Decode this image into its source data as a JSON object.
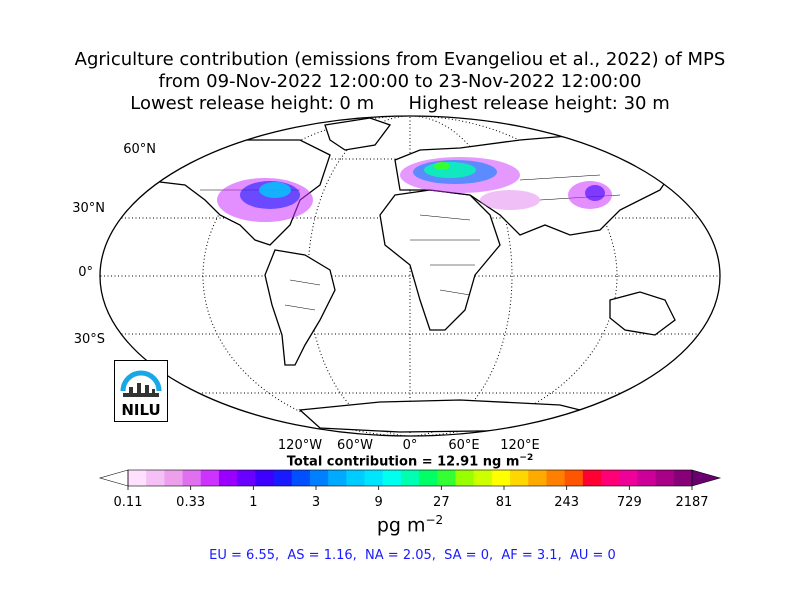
{
  "title": {
    "line1": "Agriculture contribution (emissions from Evangeliou et al., 2022) of MPS",
    "line2": "from 09-Nov-2022 12:00:00 to 23-Nov-2022 12:00:00",
    "line3": "Lowest release height: 0 m      Highest release height: 30 m"
  },
  "map": {
    "projection": "Robinson",
    "lat_labels": [
      "60°N",
      "30°N",
      "0°",
      "30°S"
    ],
    "lon_labels": [
      "120°W",
      "60°W",
      "0°",
      "60°E",
      "120°E"
    ],
    "gridlines": "dotted",
    "concentration_regions": [
      {
        "region": "North America",
        "level": "high"
      },
      {
        "region": "Europe",
        "level": "high"
      },
      {
        "region": "Asia",
        "level": "moderate"
      }
    ]
  },
  "total": {
    "label": "Total contribution = 12.91 ng m",
    "exponent": "−2"
  },
  "colorbar": {
    "tick_labels": [
      "0.11",
      "0.33",
      "1",
      "3",
      "9",
      "27",
      "81",
      "243",
      "729",
      "2187"
    ],
    "colors": [
      "#ffffff",
      "#ffe0ff",
      "#f5c0f5",
      "#eca0ec",
      "#e070f0",
      "#cc33ff",
      "#9900ff",
      "#6a00ff",
      "#3d00ff",
      "#1a1aff",
      "#0050ff",
      "#0080ff",
      "#00aaff",
      "#00ccff",
      "#00e5ff",
      "#00ffee",
      "#00ffb0",
      "#00ff66",
      "#33ff33",
      "#99ff00",
      "#ccff00",
      "#ffff00",
      "#ffd700",
      "#ffaa00",
      "#ff8000",
      "#ff5500",
      "#ff0033",
      "#ff0077",
      "#ee0099",
      "#cc0099",
      "#aa0088",
      "#880077",
      "#6a0070"
    ],
    "unit": "pg m",
    "unit_exponent": "−2"
  },
  "regions_summary": "EU = 6.55,  AS = 1.16,  NA = 2.05,  SA = 0,  AF = 3.1,  AU = 0",
  "logo": {
    "text": "NILU"
  }
}
